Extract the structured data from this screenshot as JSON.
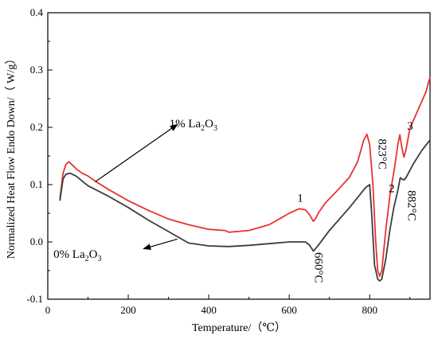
{
  "chart_data": {
    "type": "line",
    "xlabel": "Temperature/（℃）",
    "ylabel": "Normalized Heat Flow Endo Down/（ W/g）",
    "xlim": [
      0,
      950
    ],
    "ylim": [
      -0.1,
      0.4
    ],
    "x_ticks": [
      0,
      200,
      400,
      600,
      800
    ],
    "y_ticks": [
      -0.1,
      0.0,
      0.1,
      0.2,
      0.3,
      0.4
    ],
    "x_tick_labels": [
      "0",
      "200",
      "400",
      "600",
      "800"
    ],
    "y_tick_labels": [
      "-0.1",
      "0.0",
      "0.1",
      "0.2",
      "0.3",
      "0.4"
    ],
    "grid": false,
    "legend": "none",
    "series": [
      {
        "name": "1% La2O3",
        "color": "#e8332f",
        "x": [
          30,
          38,
          45,
          52,
          60,
          70,
          85,
          100,
          120,
          150,
          200,
          250,
          300,
          350,
          400,
          440,
          450,
          500,
          550,
          580,
          600,
          625,
          640,
          650,
          660,
          665,
          672,
          690,
          720,
          750,
          770,
          785,
          793,
          800,
          808,
          815,
          820,
          825,
          830,
          840,
          850,
          862,
          870,
          875,
          880,
          885,
          890,
          900,
          920,
          940,
          950
        ],
        "y": [
          0.075,
          0.12,
          0.135,
          0.14,
          0.135,
          0.128,
          0.12,
          0.115,
          0.105,
          0.092,
          0.072,
          0.055,
          0.04,
          0.03,
          0.022,
          0.02,
          0.017,
          0.02,
          0.03,
          0.042,
          0.05,
          0.058,
          0.056,
          0.048,
          0.036,
          0.04,
          0.05,
          0.068,
          0.09,
          0.113,
          0.14,
          0.177,
          0.188,
          0.17,
          0.1,
          0.0,
          -0.05,
          -0.06,
          -0.05,
          0.02,
          0.08,
          0.13,
          0.17,
          0.187,
          0.165,
          0.148,
          0.16,
          0.198,
          0.23,
          0.262,
          0.288
        ]
      },
      {
        "name": "0% La2O3",
        "color": "#3c3c3c",
        "x": [
          30,
          38,
          45,
          55,
          70,
          100,
          150,
          200,
          250,
          300,
          350,
          400,
          450,
          500,
          550,
          600,
          640,
          650,
          660,
          670,
          700,
          750,
          790,
          800,
          805,
          812,
          820,
          825,
          830,
          840,
          850,
          860,
          870,
          876,
          880,
          885,
          890,
          910,
          930,
          950
        ],
        "y": [
          0.072,
          0.11,
          0.118,
          0.12,
          0.115,
          0.098,
          0.08,
          0.06,
          0.038,
          0.018,
          -0.002,
          -0.007,
          -0.008,
          -0.006,
          -0.003,
          0.0,
          0.0,
          -0.005,
          -0.016,
          -0.008,
          0.02,
          0.06,
          0.095,
          0.1,
          0.05,
          -0.04,
          -0.065,
          -0.068,
          -0.065,
          -0.03,
          0.02,
          0.06,
          0.09,
          0.112,
          0.11,
          0.108,
          0.112,
          0.138,
          0.16,
          0.178
        ]
      }
    ],
    "annotations": [
      {
        "text": "1",
        "x": 620,
        "y": 0.07
      },
      {
        "text": "2",
        "x": 847,
        "y": 0.087
      },
      {
        "text": "3",
        "x": 893,
        "y": 0.196
      },
      {
        "text": "823°C",
        "x": 822,
        "y": 0.18,
        "rotate": 90
      },
      {
        "text": "882°C",
        "x": 896,
        "y": 0.09,
        "rotate": 90
      },
      {
        "text": "660°C",
        "x": 664,
        "y": -0.018,
        "rotate": 90
      }
    ],
    "series_labels": [
      {
        "prefix": "1% La",
        "sub1": "2",
        "mid": "O",
        "sub2": "3",
        "x": 302,
        "y": 0.2
      },
      {
        "prefix": "0% La",
        "sub1": "2",
        "mid": "O",
        "sub2": "3",
        "x": 14,
        "y": -0.028
      }
    ],
    "arrows": [
      {
        "from": [
          118,
          0.105
        ],
        "to": [
          322,
          0.205
        ]
      },
      {
        "from": [
          322,
          0.005
        ],
        "to": [
          238,
          -0.012
        ]
      }
    ]
  }
}
